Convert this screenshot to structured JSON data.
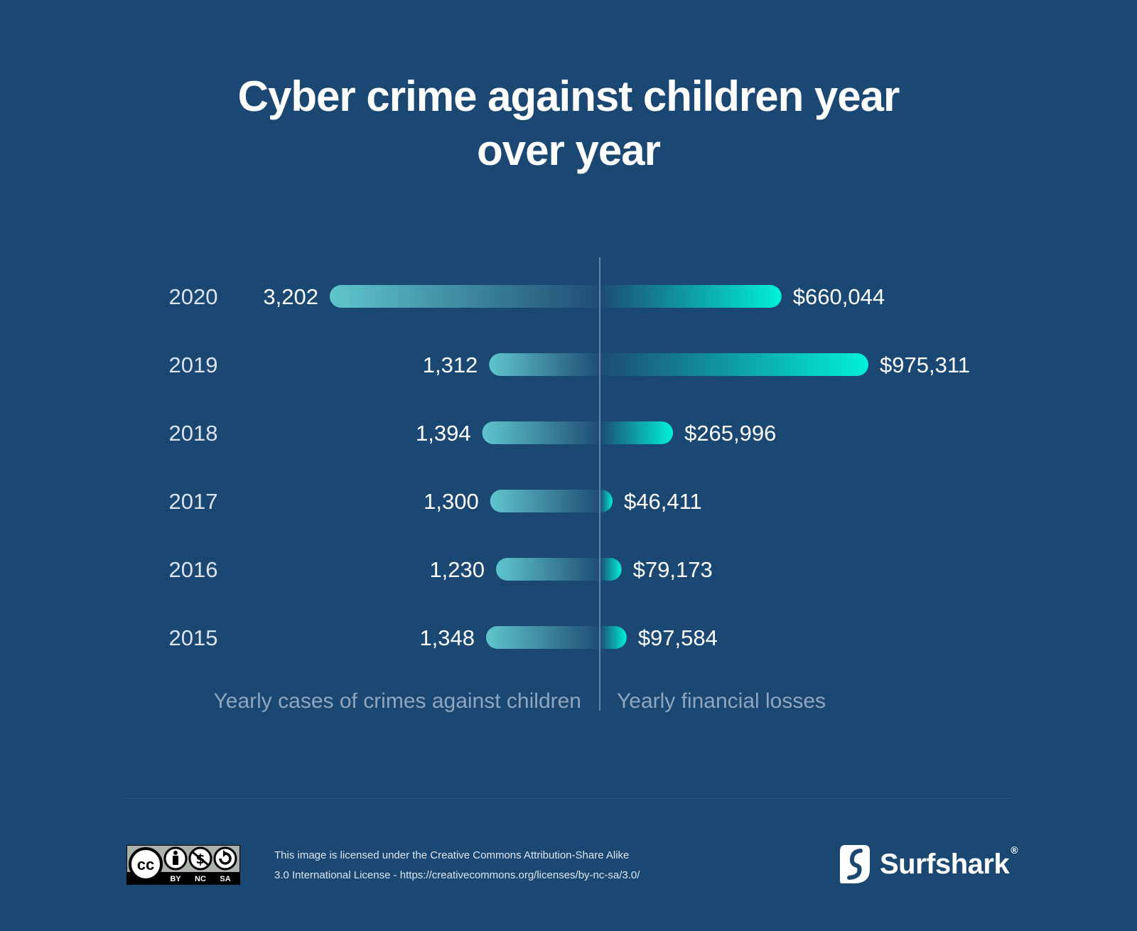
{
  "title_line1": "Cyber crime against children year",
  "title_line2": "over year",
  "chart_data": {
    "type": "bar",
    "layout": "diverging-horizontal",
    "categories": [
      "2020",
      "2019",
      "2018",
      "2017",
      "2016",
      "2015"
    ],
    "series": [
      {
        "name": "Yearly cases of crimes against children",
        "side": "left",
        "values": [
          3202,
          1312,
          1394,
          1300,
          1230,
          1348
        ],
        "labels": [
          "3,202",
          "1,312",
          "1,394",
          "1,300",
          "1,230",
          "1,348"
        ]
      },
      {
        "name": "Yearly financial losses",
        "side": "right",
        "values": [
          660044,
          975311,
          265996,
          46411,
          79173,
          97584
        ],
        "labels": [
          "$660,044",
          "$975,311",
          "$265,996",
          "$46,411",
          "$79,173",
          "$97,584"
        ]
      }
    ],
    "grid": false,
    "legend": "bottom",
    "colors": {
      "left_bar_start": "#5ec6cc",
      "left_bar_end": "#1f4c74",
      "right_bar_start": "#1d4b73",
      "right_bar_end": "#00f0d8",
      "axis_line": "#7f98b2",
      "category_text": "#dbe4ee",
      "label_text": "#ffffff",
      "legend_text": "#8fa6be"
    }
  },
  "footer": {
    "cc_badge_labels": [
      "BY",
      "NC",
      "SA"
    ],
    "cc_logo_text": "cc",
    "license_line1": "This image is licensed under the Creative Commons Attribution-Share Alike",
    "license_line2": "3.0 International License - https://creativecommons.org/licenses/by-nc-sa/3.0/",
    "brand_name": "Surfshark",
    "brand_mark": "®"
  },
  "colors": {
    "background": "#1b4872",
    "divider": "#2d5884"
  }
}
